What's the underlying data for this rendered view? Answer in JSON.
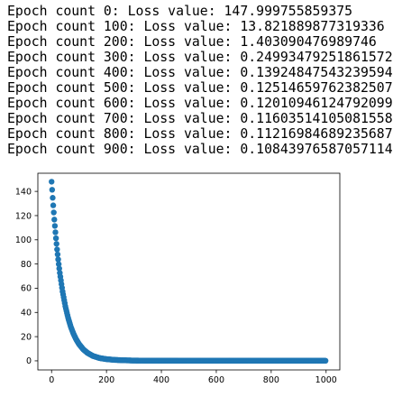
{
  "console": {
    "lines": [
      "Epoch count 0: Loss value: 147.999755859375",
      "Epoch count 100: Loss value: 13.821889877319336",
      "Epoch count 200: Loss value: 1.403090476989746",
      "Epoch count 300: Loss value: 0.24993479251861572",
      "Epoch count 400: Loss value: 0.13924847543239594",
      "Epoch count 500: Loss value: 0.12514659762382507",
      "Epoch count 600: Loss value: 0.12010946124792099",
      "Epoch count 700: Loss value: 0.11603514105081558",
      "Epoch count 800: Loss value: 0.11216984689235687",
      "Epoch count 900: Loss value: 0.10843976587057114"
    ]
  },
  "chart_data": {
    "type": "scatter",
    "title": "",
    "xlabel": "",
    "ylabel": "",
    "xlim": [
      -50,
      1050
    ],
    "ylim": [
      -7.5,
      155
    ],
    "x_ticks": [
      0,
      200,
      400,
      600,
      800,
      1000
    ],
    "y_ticks": [
      0,
      20,
      40,
      60,
      80,
      100,
      120,
      140
    ],
    "x_tick_labels": [
      "0",
      "200",
      "400",
      "600",
      "800",
      "1000"
    ],
    "y_tick_labels": [
      "0",
      "20",
      "40",
      "60",
      "80",
      "100",
      "120",
      "140"
    ],
    "grid": false,
    "legend": "none",
    "series": [
      {
        "color": "#1f77b4",
        "x": [
          0,
          5,
          10,
          15,
          20,
          25,
          30,
          40,
          50,
          60,
          70,
          80,
          90,
          100,
          115,
          130,
          150,
          175,
          200,
          230,
          260,
          300,
          350,
          400,
          450,
          500,
          550,
          600,
          650,
          700,
          750,
          800,
          850,
          900,
          950,
          999
        ],
        "y": [
          148,
          131.4,
          116.7,
          103.6,
          92,
          81.7,
          72.6,
          57.3,
          45.2,
          35.7,
          28.1,
          22.2,
          17.5,
          13.8,
          9.6,
          6.7,
          4.1,
          2.3,
          1.4,
          0.8,
          0.5,
          0.25,
          0.18,
          0.14,
          0.13,
          0.125,
          0.122,
          0.12,
          0.118,
          0.116,
          0.114,
          0.112,
          0.11,
          0.108,
          0.106,
          0.105
        ]
      }
    ]
  }
}
